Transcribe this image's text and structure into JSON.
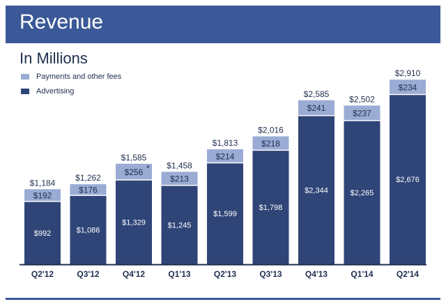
{
  "header": {
    "title": "Revenue"
  },
  "subtitle": "In Millions",
  "legend": {
    "items": [
      {
        "label": "Payments and other fees",
        "color": "#9aabd4"
      },
      {
        "label": "Advertising",
        "color": "#2f4577"
      }
    ]
  },
  "colors": {
    "header": "#3b5998",
    "payments": "#9aabd4",
    "advertising": "#2f4577",
    "axis": "#1f2e4e"
  },
  "chart_data": {
    "type": "bar",
    "stacked": true,
    "title": "Revenue",
    "subtitle": "In Millions",
    "categories": [
      "Q2'12",
      "Q3'12",
      "Q4'12",
      "Q1'13",
      "Q2'13",
      "Q3'13",
      "Q4'13",
      "Q1'14",
      "Q2'14"
    ],
    "series": [
      {
        "name": "Advertising",
        "values": [
          992,
          1086,
          1329,
          1245,
          1599,
          1798,
          2344,
          2265,
          2676
        ]
      },
      {
        "name": "Payments and other fees",
        "values": [
          192,
          176,
          256,
          213,
          214,
          218,
          241,
          237,
          234
        ]
      }
    ],
    "totals": [
      1184,
      1262,
      1585,
      1458,
      1813,
      2016,
      2585,
      2502,
      2910
    ],
    "ylim": [
      0,
      3000
    ],
    "grid": false,
    "legend_position": "top-left",
    "annotations": [
      {
        "category": "Q4'12",
        "text": "*"
      }
    ]
  }
}
